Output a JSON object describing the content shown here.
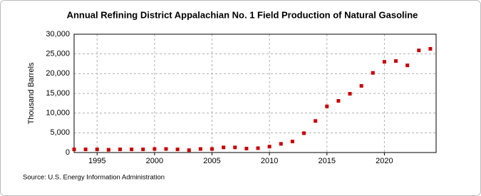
{
  "chart_data": {
    "type": "scatter",
    "title": "Annual Refining District Appalachian No. 1 Field Production of Natural Gasoline",
    "y_label": "Thousand Barrels",
    "source": "Source: U.S. Energy Information Administration",
    "x": [
      1993,
      1994,
      1995,
      1996,
      1997,
      1998,
      1999,
      2000,
      2001,
      2002,
      2003,
      2004,
      2005,
      2006,
      2007,
      2008,
      2009,
      2010,
      2011,
      2012,
      2013,
      2014,
      2015,
      2016,
      2017,
      2018,
      2019,
      2020,
      2021,
      2022,
      2023,
      2024
    ],
    "values": [
      800,
      800,
      800,
      700,
      800,
      800,
      800,
      900,
      900,
      800,
      600,
      900,
      900,
      1300,
      1300,
      1000,
      1100,
      1500,
      2200,
      2800,
      4900,
      8000,
      11700,
      13100,
      14900,
      16900,
      20200,
      23000,
      23200,
      22100,
      25900,
      26300
    ],
    "color": "#cc0000",
    "xlim": [
      1993,
      2024.5
    ],
    "xticks": [
      1995,
      2000,
      2005,
      2010,
      2015,
      2020
    ],
    "ylim": [
      0,
      30000
    ],
    "yticks": [
      0,
      {
        "value": 5000,
        "label": "5,000"
      },
      {
        "value": 10000,
        "label": "10,000"
      },
      {
        "value": 15000,
        "label": "15,000"
      },
      {
        "value": 20000,
        "label": "20,000"
      },
      {
        "value": 25000,
        "label": "25,000"
      },
      {
        "value": 30000,
        "label": "30,000"
      }
    ],
    "grid": true
  }
}
